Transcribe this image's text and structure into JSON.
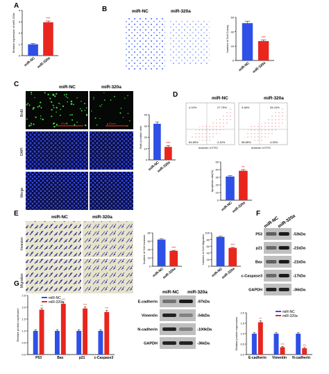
{
  "panels": {
    "A": "A",
    "B": "B",
    "C": "C",
    "D": "D",
    "E": "E",
    "F": "F",
    "G": "G",
    "H": "H"
  },
  "groups": [
    "miR-NC",
    "miR-320a"
  ],
  "colors": {
    "nc": "#2a4bd7",
    "mir": "#e8241c",
    "bar_nc": "#2e50e6",
    "bar_mir": "#e8261e"
  },
  "panelA": {
    "ylabel": "Relative expression of miR-320a",
    "yticks": [
      "0",
      "1",
      "2",
      "3",
      "4"
    ],
    "ymax": 4,
    "values": [
      1.0,
      2.95
    ],
    "errors": [
      0.08,
      0.12
    ],
    "sig": "***"
  },
  "panelB": {
    "ylabel": "Number of Cell Colony",
    "yticks": [
      "0",
      "20",
      "40",
      "60"
    ],
    "ymax": 60,
    "values": [
      52,
      27
    ],
    "errors": [
      2.5,
      1.5
    ],
    "sig": "***"
  },
  "panelC": {
    "rows": [
      "BrdU",
      "DAPI",
      "Merge"
    ],
    "scalebar": "50μm",
    "ylabel": "BrdU positive cells",
    "yticks": [
      "0",
      "10",
      "20",
      "30",
      "40"
    ],
    "ymax": 40,
    "values": [
      32,
      11.5
    ],
    "errors": [
      1.5,
      1
    ],
    "sig": "***"
  },
  "panelD": {
    "quadrants_nc": [
      "4.10%",
      "27.79%",
      "64.85%",
      "2.42%"
    ],
    "quadrants_mir": [
      "3.46%",
      "34.24%",
      "56.85%",
      "4.25%"
    ],
    "xaxis": "Annexin V-FITC",
    "ylabel": "Apoptosis rate(%)",
    "yticks": [
      "0",
      "10",
      "20",
      "30",
      "40",
      "50"
    ],
    "ymax": 50,
    "values": [
      31,
      38.5
    ],
    "errors": [
      1.2,
      1.5
    ],
    "sig": "**"
  },
  "panelE": {
    "rows": [
      "Invasion",
      "Migration"
    ],
    "invasion": {
      "ylabel": "Number of Cell Invasion",
      "yticks": [
        "0",
        "20",
        "40",
        "60",
        "80"
      ],
      "ymax": 80,
      "values": [
        64,
        37
      ],
      "errors": [
        1.5,
        1.2
      ],
      "sig": "***"
    },
    "migration": {
      "ylabel": "Number of Cell Migration",
      "yticks": [
        "0",
        "20",
        "40",
        "60",
        "80",
        "100"
      ],
      "ymax": 100,
      "values": [
        88,
        55
      ],
      "errors": [
        1.8,
        1.5
      ],
      "sig": "***"
    }
  },
  "panelF": {
    "bands": [
      {
        "name": "P53",
        "kda": "-53kDa"
      },
      {
        "name": "p21",
        "kda": "-21kDa"
      },
      {
        "name": "Bax",
        "kda": "-21kDa"
      },
      {
        "name": "c-Caspase3",
        "kda": "-17kDa"
      },
      {
        "name": "GAPDH",
        "kda": "-36kDa"
      }
    ]
  },
  "panelG": {
    "ylabel": "Relative protein expression",
    "yticks": [
      "0.0",
      "0.5",
      "1.0",
      "1.5",
      "2.0",
      "2.5"
    ],
    "ymax": 2.5,
    "categories": [
      "P53",
      "Bax",
      "p21",
      "c-Caspase3"
    ],
    "nc": [
      1.0,
      1.0,
      1.0,
      1.0
    ],
    "mir": [
      1.9,
      2.15,
      1.95,
      1.8
    ],
    "nc_err": [
      0.05,
      0.05,
      0.05,
      0.05
    ],
    "mir_err": [
      0.07,
      0.08,
      0.07,
      0.07
    ],
    "sig": [
      "**",
      "***",
      "***",
      "***"
    ]
  },
  "panelH": {
    "bands": [
      {
        "name": "E-cadherin",
        "kda": "-97kDa"
      },
      {
        "name": "Vimentin",
        "kda": "-54kDa"
      },
      {
        "name": "N-cadherin",
        "kda": "-100kDa"
      },
      {
        "name": "GAPDH",
        "kda": "-36kDa"
      }
    ],
    "ylabel": "Relative protein expression",
    "yticks": [
      "0.0",
      "0.5",
      "1.0",
      "1.5",
      "2.0"
    ],
    "ymax": 2.0,
    "categories": [
      "E-cadherin",
      "Vimentin",
      "N-cadherin"
    ],
    "nc": [
      1.0,
      1.0,
      1.0
    ],
    "mir": [
      1.55,
      0.35,
      0.3
    ],
    "nc_err": [
      0.05,
      0.05,
      0.05
    ],
    "mir_err": [
      0.07,
      0.04,
      0.04
    ],
    "sig": [
      "**",
      "***",
      "***"
    ]
  }
}
